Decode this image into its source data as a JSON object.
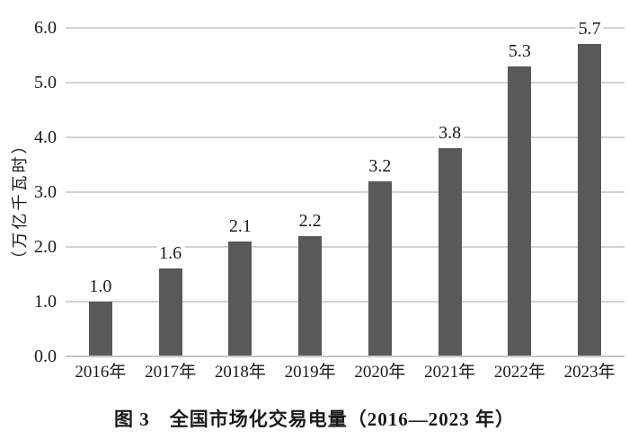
{
  "chart_data": {
    "type": "bar",
    "title": "图 3　全国市场化交易电量（2016—2023 年）",
    "ylabel": "（万亿千瓦时）",
    "xlabel": "",
    "categories": [
      "2016年",
      "2017年",
      "2018年",
      "2019年",
      "2020年",
      "2021年",
      "2022年",
      "2023年"
    ],
    "values": [
      1.0,
      1.6,
      2.1,
      2.2,
      3.2,
      3.8,
      5.3,
      5.7
    ],
    "value_labels": [
      "1.0",
      "1.6",
      "2.1",
      "2.2",
      "3.2",
      "3.8",
      "5.3",
      "5.7"
    ],
    "y_tick_labels": [
      "0.0",
      "1.0",
      "2.0",
      "3.0",
      "4.0",
      "5.0",
      "6.0"
    ],
    "ylim": [
      0,
      6
    ],
    "grid": true,
    "legend_position": "none",
    "bar_color": "#595959",
    "gridline_color": "#d2d2d2",
    "axis_line_color": "#c6c6c6",
    "text_color": "#1a1a1a"
  }
}
